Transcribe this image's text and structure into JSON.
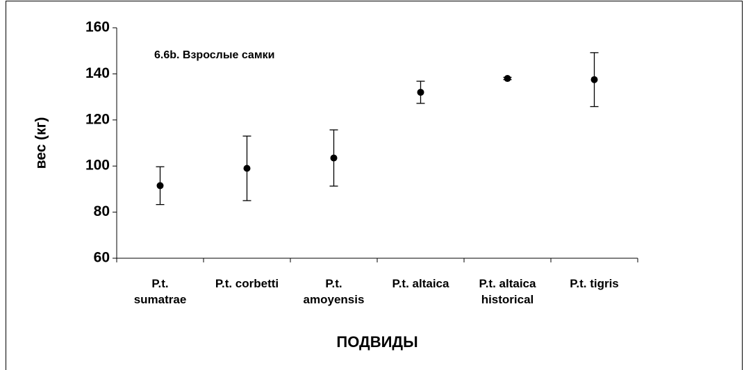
{
  "chart_data": {
    "type": "errorbar",
    "title": "6.6b. Взрослые самки",
    "y_label": "вес (кг)",
    "x_label": "ПОДВИДЫ",
    "categories": [
      "P.t.\nsumatrae",
      "P.t. corbetti",
      "P.t.\namoyensis",
      "P.t. altaica",
      "P.t. altaica\nhistorical",
      "P.t. tigris"
    ],
    "values": [
      91.5,
      99,
      103.5,
      132,
      138,
      137.5
    ],
    "errors": [
      8.2,
      14,
      12.2,
      4.8,
      0.5,
      11.7
    ],
    "color": "#000000",
    "ylim": [
      60,
      160
    ],
    "yticks": [
      60,
      80,
      100,
      120,
      140,
      160
    ],
    "grid": false
  }
}
